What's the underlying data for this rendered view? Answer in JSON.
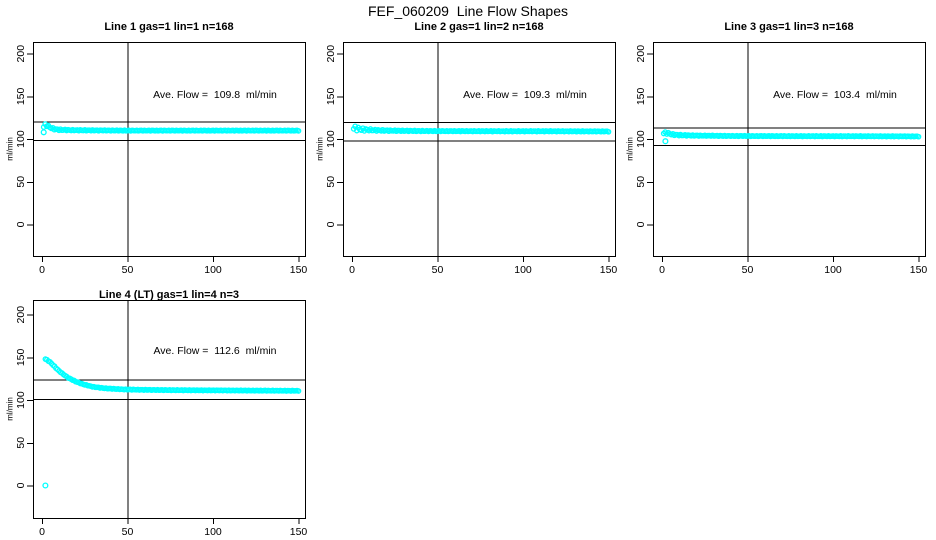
{
  "title": "FEF_060209  Line Flow Shapes",
  "colors": {
    "marker": "#00FFFF",
    "axis": "#000000",
    "background": "#FFFFFF"
  },
  "chart_data": [
    {
      "type": "scatter",
      "title": "Line 1 gas=1 lin=1 n=168",
      "annotation": "Ave. Flow =  109.8  ml/min",
      "ave_flow": 109.8,
      "n": 168,
      "ylabel": "ml/min",
      "xlabel": "",
      "x_ticks": [
        0,
        50,
        100,
        150
      ],
      "y_ticks": [
        0,
        50,
        100,
        150,
        200
      ],
      "xlim": [
        -5,
        155
      ],
      "ylim": [
        -38,
        214
      ],
      "ref_lines": {
        "vertical_x": 50,
        "horizontal": [
          120.8,
          98.8
        ]
      },
      "points_profile": [
        [
          1,
          114
        ],
        [
          2,
          117
        ],
        [
          3,
          116
        ],
        [
          4,
          114.5
        ],
        [
          5,
          113.5
        ],
        [
          6,
          112.5
        ],
        [
          8,
          111.5
        ],
        [
          10,
          111
        ],
        [
          12,
          110.8
        ],
        [
          15,
          110.6
        ],
        [
          20,
          110.4
        ],
        [
          25,
          110.3
        ],
        [
          30,
          110.2
        ],
        [
          40,
          110.1
        ],
        [
          50,
          110
        ],
        [
          70,
          110
        ],
        [
          90,
          110
        ],
        [
          110,
          110
        ],
        [
          130,
          110
        ],
        [
          150,
          110
        ]
      ],
      "outliers": [
        [
          1,
          108
        ]
      ],
      "scatter_band": {
        "base": 0.35,
        "start": 1.2,
        "decay": 10
      },
      "n_render": 168
    },
    {
      "type": "scatter",
      "title": "Line 2 gas=1 lin=2 n=168",
      "annotation": "Ave. Flow =  109.3  ml/min",
      "ave_flow": 109.3,
      "n": 168,
      "ylabel": "ml/min",
      "xlabel": "",
      "x_ticks": [
        0,
        50,
        100,
        150
      ],
      "y_ticks": [
        0,
        50,
        100,
        150,
        200
      ],
      "xlim": [
        -5,
        155
      ],
      "ylim": [
        -38,
        214
      ],
      "ref_lines": {
        "vertical_x": 50,
        "horizontal": [
          120.2,
          98.4
        ]
      },
      "points_profile": [
        [
          1,
          112
        ],
        [
          2,
          114
        ],
        [
          3,
          111
        ],
        [
          4,
          113
        ],
        [
          5,
          110.5
        ],
        [
          6,
          112
        ],
        [
          7,
          110.5
        ],
        [
          8,
          111.5
        ],
        [
          9,
          110.5
        ],
        [
          10,
          111
        ],
        [
          12,
          110.5
        ],
        [
          15,
          110.3
        ],
        [
          18,
          110.1
        ],
        [
          22,
          109.9
        ],
        [
          26,
          109.8
        ],
        [
          30,
          109.7
        ],
        [
          40,
          109.5
        ],
        [
          50,
          109.4
        ],
        [
          70,
          109.3
        ],
        [
          90,
          109.2
        ],
        [
          110,
          109.2
        ],
        [
          130,
          109.1
        ],
        [
          150,
          109
        ]
      ],
      "outliers": [],
      "scatter_band": {
        "base": 0.4,
        "start": 1.6,
        "decay": 12
      },
      "n_render": 168
    },
    {
      "type": "scatter",
      "title": "Line 3 gas=1 lin=3 n=168",
      "annotation": "Ave. Flow =  103.4  ml/min",
      "ave_flow": 103.4,
      "n": 168,
      "ylabel": "ml/min",
      "xlabel": "",
      "x_ticks": [
        0,
        50,
        100,
        150
      ],
      "y_ticks": [
        0,
        50,
        100,
        150,
        200
      ],
      "xlim": [
        -5,
        155
      ],
      "ylim": [
        -38,
        214
      ],
      "ref_lines": {
        "vertical_x": 50,
        "horizontal": [
          113.7,
          93.1
        ]
      },
      "points_profile": [
        [
          1,
          106.5
        ],
        [
          2,
          107.5
        ],
        [
          3,
          107
        ],
        [
          4,
          106.5
        ],
        [
          5,
          106
        ],
        [
          6,
          105.5
        ],
        [
          8,
          105
        ],
        [
          10,
          104.7
        ],
        [
          12,
          104.5
        ],
        [
          15,
          104.3
        ],
        [
          20,
          104.1
        ],
        [
          25,
          104
        ],
        [
          30,
          103.9
        ],
        [
          40,
          103.7
        ],
        [
          50,
          103.6
        ],
        [
          70,
          103.5
        ],
        [
          90,
          103.4
        ],
        [
          110,
          103.4
        ],
        [
          130,
          103.3
        ],
        [
          150,
          103.2
        ]
      ],
      "outliers": [
        [
          2,
          97.5
        ]
      ],
      "scatter_band": {
        "base": 0.35,
        "start": 1.0,
        "decay": 10
      },
      "n_render": 168
    },
    {
      "type": "scatter",
      "title": "Line 4 (LT) gas=1 lin=4 n=3",
      "annotation": "Ave. Flow =  112.6  ml/min",
      "ave_flow": 112.6,
      "n": 3,
      "ylabel": "ml/min",
      "xlabel": "",
      "x_ticks": [
        0,
        50,
        100,
        150
      ],
      "y_ticks": [
        0,
        50,
        100,
        150,
        200
      ],
      "xlim": [
        -5,
        155
      ],
      "ylim": [
        -38,
        214
      ],
      "ref_lines": {
        "vertical_x": 50,
        "horizontal": [
          123.9,
          101.3
        ]
      },
      "points_profile": [
        [
          2,
          148
        ],
        [
          3,
          147
        ],
        [
          4,
          145.5
        ],
        [
          5,
          144
        ],
        [
          6,
          142
        ],
        [
          7,
          140
        ],
        [
          8,
          138
        ],
        [
          9,
          136
        ],
        [
          10,
          134
        ],
        [
          11,
          132.5
        ],
        [
          12,
          131
        ],
        [
          13,
          129.5
        ],
        [
          14,
          128
        ],
        [
          15,
          126.5
        ],
        [
          16,
          125.5
        ],
        [
          17,
          124.5
        ],
        [
          18,
          123.5
        ],
        [
          19,
          122.5
        ],
        [
          20,
          121.5
        ],
        [
          22,
          120
        ],
        [
          24,
          118.5
        ],
        [
          26,
          117.5
        ],
        [
          28,
          116.5
        ],
        [
          30,
          115.5
        ],
        [
          32,
          115
        ],
        [
          34,
          114.5
        ],
        [
          36,
          114
        ],
        [
          38,
          113.7
        ],
        [
          40,
          113.4
        ],
        [
          45,
          112.8
        ],
        [
          50,
          112.4
        ],
        [
          55,
          112.2
        ],
        [
          60,
          112
        ],
        [
          70,
          111.8
        ],
        [
          80,
          111.6
        ],
        [
          90,
          111.5
        ],
        [
          100,
          111.4
        ],
        [
          110,
          111.3
        ],
        [
          120,
          111.2
        ],
        [
          130,
          111.1
        ],
        [
          140,
          111
        ],
        [
          150,
          110.9
        ]
      ],
      "outliers": [
        [
          2,
          0
        ]
      ],
      "scatter_band": {
        "base": 0.3,
        "start": 0,
        "decay": 10
      },
      "n_render": 168
    }
  ]
}
